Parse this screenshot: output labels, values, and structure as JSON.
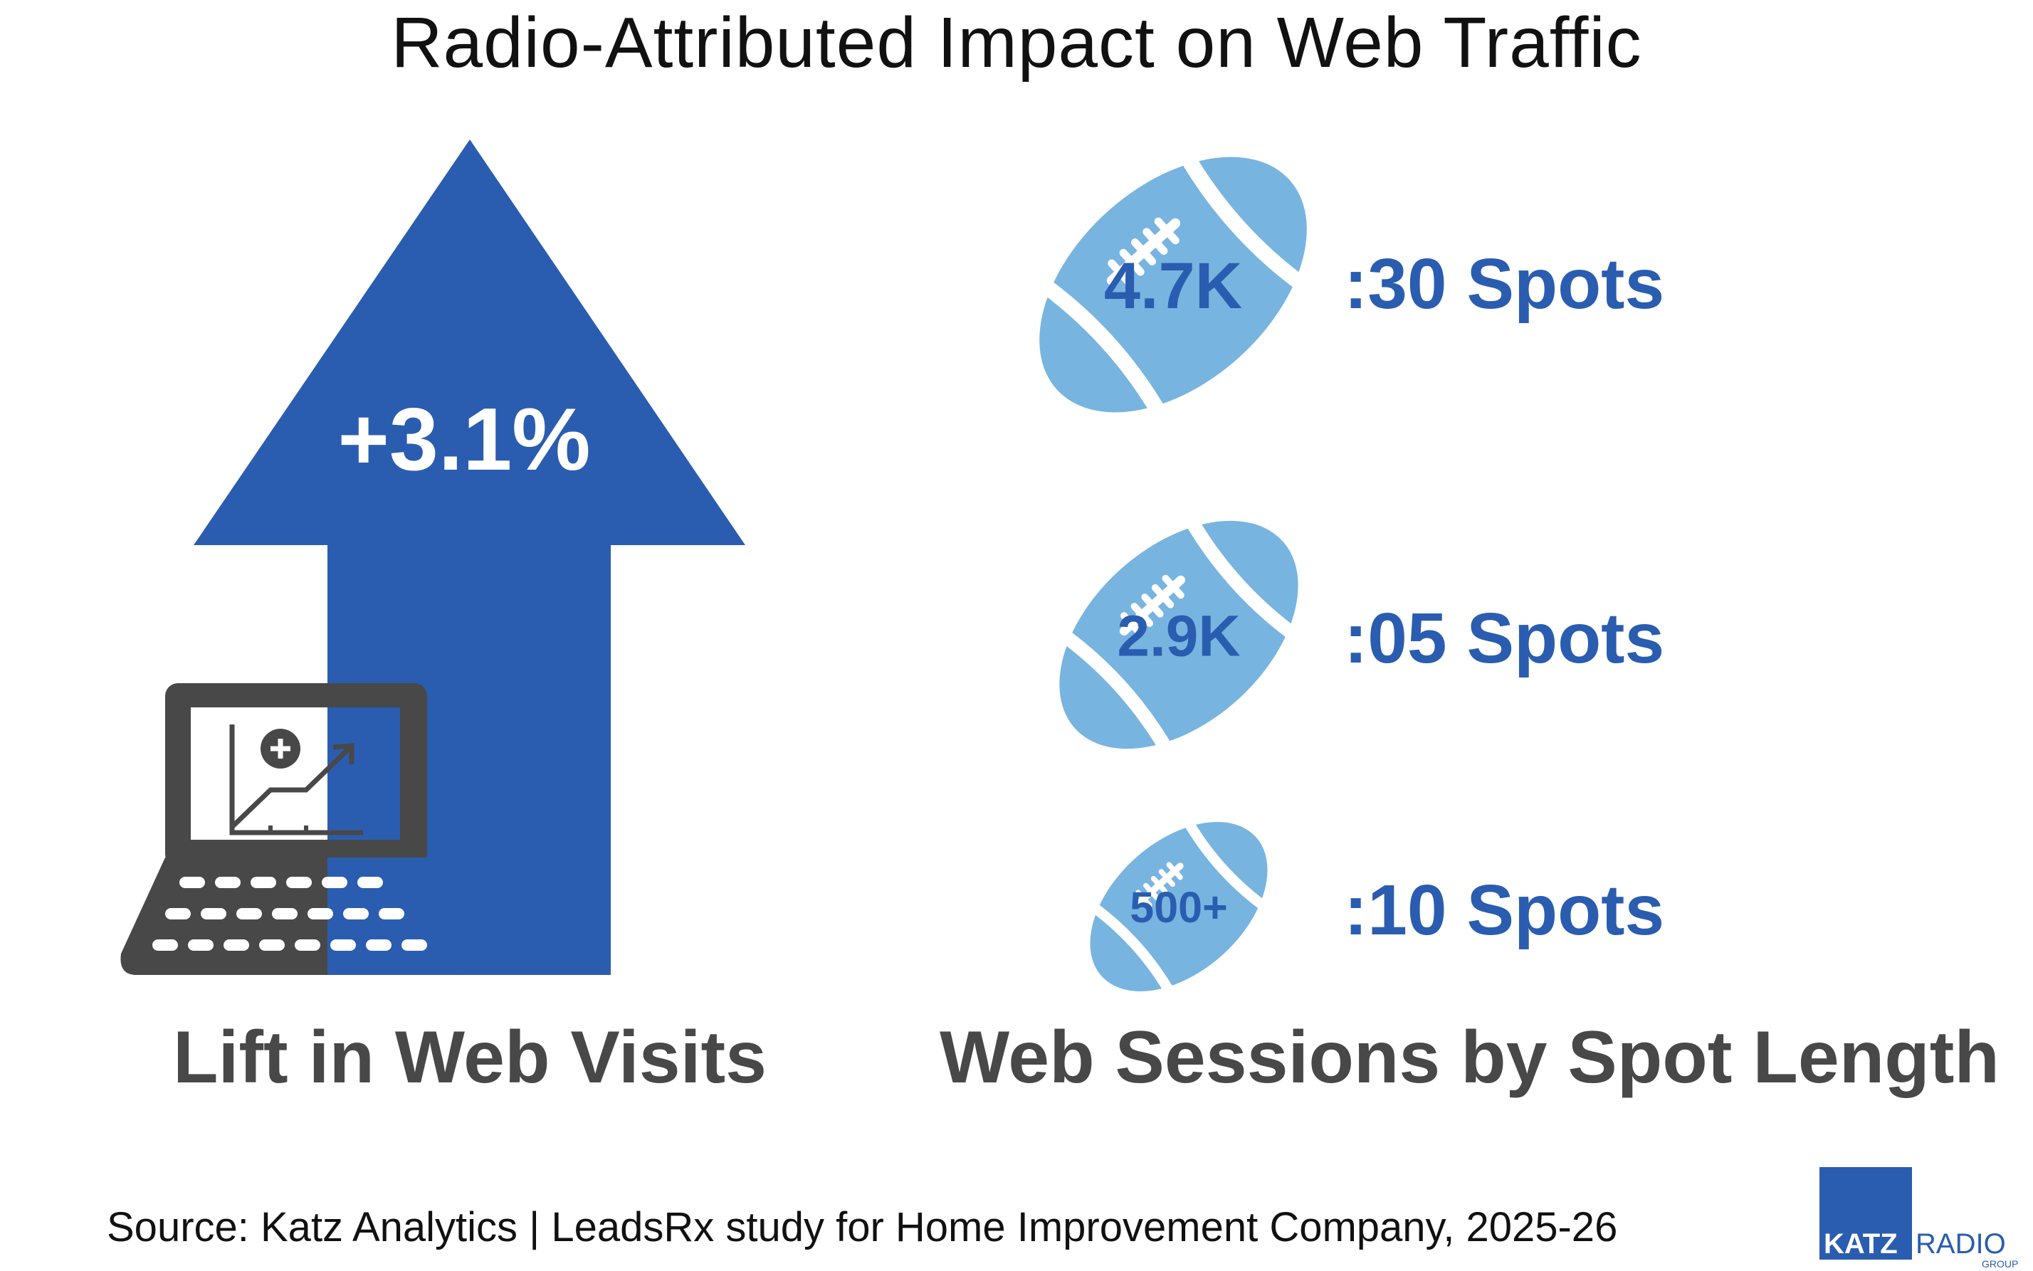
{
  "title": "Radio-Attributed Impact on Web Traffic",
  "lift": {
    "value_label": "+3.1%",
    "caption": "Lift in Web Visits"
  },
  "sessions": {
    "caption": "Web Sessions by Spot Length"
  },
  "chart_data": {
    "type": "bar",
    "categories": [
      ":30 Spots",
      ":05 Spots",
      ":10 Spots"
    ],
    "values": [
      4700,
      2900,
      500
    ],
    "value_labels": [
      "4.7K",
      "2.9K",
      "500+"
    ],
    "title": "Web Sessions by Spot Length",
    "xlabel": "",
    "ylabel": ""
  },
  "source": "Source: Katz Analytics | LeadsRx study for Home Improvement Company, 2025-26",
  "logo": {
    "katz": "KATZ",
    "radio": "RADIO",
    "group": "GROUP"
  },
  "colors": {
    "arrow": "#2a5db0",
    "football": "#78b4e0",
    "label_blue": "#2a5db0",
    "laptop": "#484848",
    "text_dark": "#111111"
  },
  "icons": [
    "up-arrow-icon",
    "laptop-chart-icon",
    "football-icon",
    "katz-radio-logo"
  ]
}
